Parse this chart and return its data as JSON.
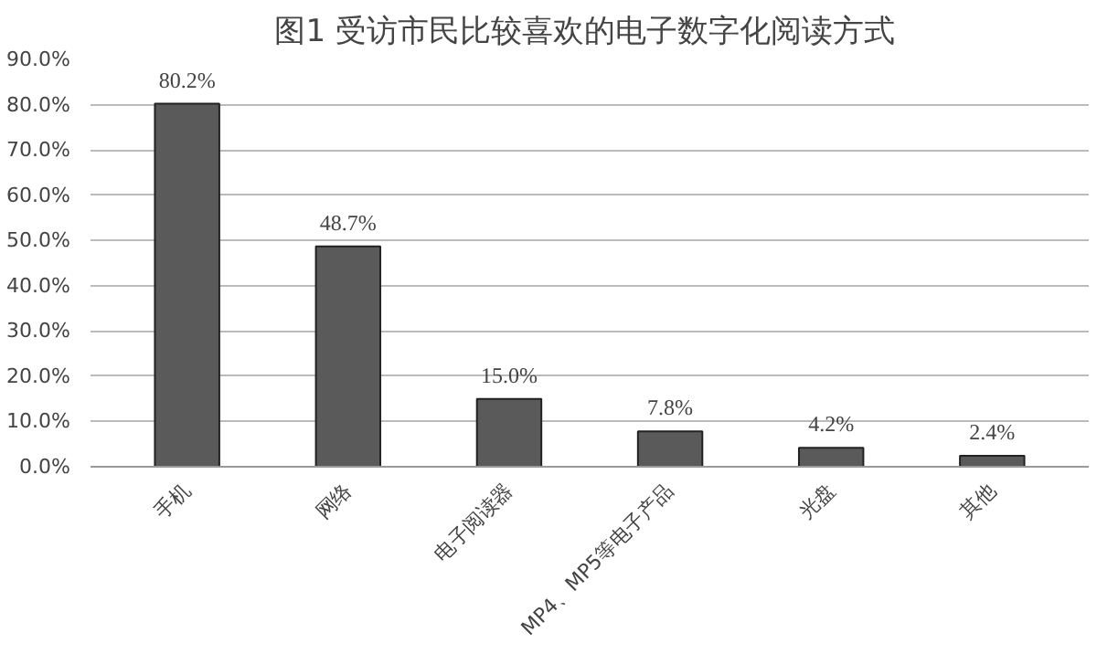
{
  "chart_data": {
    "type": "bar",
    "title": "图1  受访市民比较喜欢的电子数字化阅读方式",
    "categories": [
      "手机",
      "网络",
      "电子阅读器",
      "MP4、MP5等电子产品",
      "光盘",
      "其他"
    ],
    "values": [
      80.2,
      48.7,
      15.0,
      7.8,
      4.2,
      2.4
    ],
    "value_labels": [
      "80.2%",
      "48.7%",
      "15.0%",
      "7.8%",
      "4.2%",
      "2.4%"
    ],
    "color": "#5a5a5a",
    "ylim": [
      0,
      90
    ],
    "yticks": [
      {
        "value": 0,
        "label": "0.0%"
      },
      {
        "value": 10,
        "label": "10.0%"
      },
      {
        "value": 20,
        "label": "20.0%"
      },
      {
        "value": 30,
        "label": "30.0%"
      },
      {
        "value": 40,
        "label": "40.0%"
      },
      {
        "value": 50,
        "label": "50.0%"
      },
      {
        "value": 60,
        "label": "60.0%"
      },
      {
        "value": 70,
        "label": "70.0%"
      },
      {
        "value": 80,
        "label": "80.0%"
      },
      {
        "value": 90,
        "label": "90.0%"
      }
    ],
    "grid": "y"
  }
}
